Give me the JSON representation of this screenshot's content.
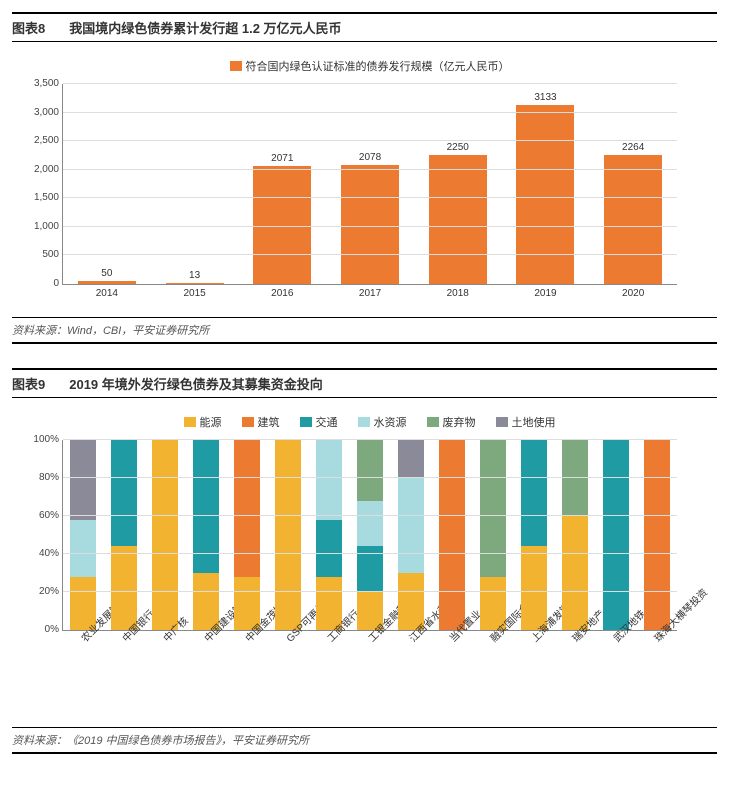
{
  "panel8": {
    "figlabel": "图表8",
    "title": "我国境内绿色债券累计发行超 1.2 万亿元人民币",
    "legend": "符合国内绿色认证标准的债券发行规模（亿元人民币）",
    "legend_color": "#ec7a31",
    "source": "资料来源：Wind，CBI，平安证券研究所",
    "ymax": 3500,
    "ystep": 500,
    "yticks": [
      "0",
      "500",
      "1,000",
      "1,500",
      "2,000",
      "2,500",
      "3,000",
      "3,500"
    ],
    "bar_color": "#ec7a31",
    "categories": [
      "2014",
      "2015",
      "2016",
      "2017",
      "2018",
      "2019",
      "2020"
    ],
    "values": [
      50,
      13,
      2071,
      2078,
      2250,
      3133,
      2264
    ],
    "labels": [
      "50",
      "13",
      "2071",
      "2078",
      "2250",
      "3133",
      "2264"
    ]
  },
  "panel9": {
    "figlabel": "图表9",
    "title": "2019 年境外发行绿色债券及其募集资金投向",
    "source": "资料来源：《2019 中国绿色债券市场报告》，平安证券研究所",
    "yticks": [
      "0%",
      "20%",
      "40%",
      "60%",
      "80%",
      "100%"
    ],
    "legend": [
      {
        "key": "energy",
        "label": "能源",
        "color": "#f2b430"
      },
      {
        "key": "building",
        "label": "建筑",
        "color": "#ec7a31"
      },
      {
        "key": "transport",
        "label": "交通",
        "color": "#1f9ba3"
      },
      {
        "key": "water",
        "label": "水资源",
        "color": "#a7dbe0"
      },
      {
        "key": "waste",
        "label": "废弃物",
        "color": "#7ea87e"
      },
      {
        "key": "land",
        "label": "土地使用",
        "color": "#8a8a99"
      }
    ],
    "categories": [
      "农业发展银行",
      "中国银行",
      "中广核",
      "中国建设银行",
      "中国金茂控股",
      "GSP可再生能源",
      "工商银行",
      "工银金融租赁",
      "江西省水利投资",
      "当代置业",
      "融实国际金融",
      "上海浦发银行",
      "瑞安地产",
      "武汉地铁",
      "珠海大横琴投资"
    ],
    "series": [
      {
        "energy": 28,
        "water": 30,
        "land": 42
      },
      {
        "energy": 44,
        "transport": 56
      },
      {
        "energy": 100
      },
      {
        "energy": 30,
        "transport": 70
      },
      {
        "energy": 28,
        "building": 72
      },
      {
        "energy": 100
      },
      {
        "energy": 28,
        "transport": 30,
        "water": 42
      },
      {
        "energy": 20,
        "transport": 24,
        "water": 24,
        "waste": 32
      },
      {
        "energy": 30,
        "water": 50,
        "land": 20
      },
      {
        "building": 100
      },
      {
        "energy": 28,
        "waste": 72
      },
      {
        "energy": 44,
        "transport": 56
      },
      {
        "energy": 60,
        "waste": 40
      },
      {
        "transport": 100
      },
      {
        "building": 100
      }
    ]
  }
}
